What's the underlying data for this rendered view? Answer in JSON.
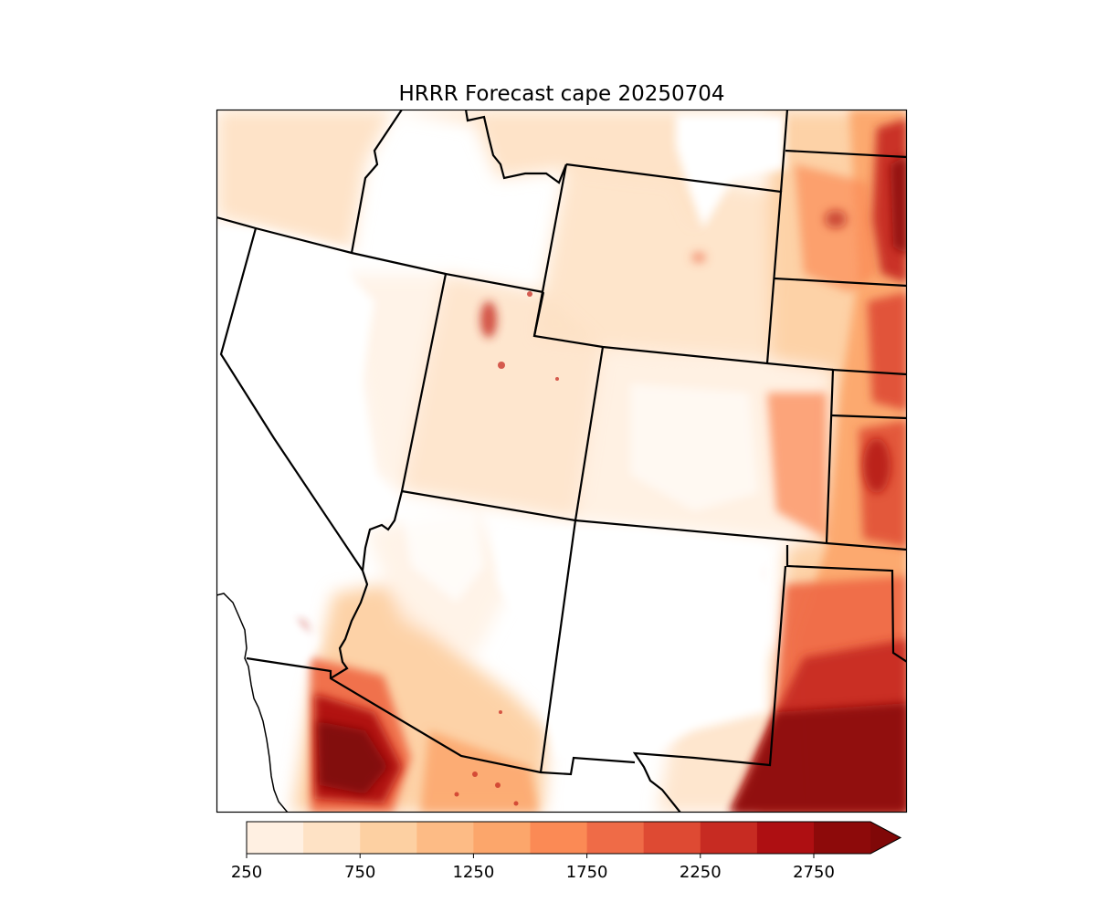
{
  "title": "HRRR Forecast cape 20250704",
  "colorbar": {
    "levels": [
      250,
      500,
      750,
      1000,
      1250,
      1500,
      1750,
      2000,
      2250,
      2500,
      2750,
      3000
    ],
    "colors": [
      "#fff0e2",
      "#fee2c5",
      "#fdd0a2",
      "#fdbb85",
      "#fca66b",
      "#fb8a55",
      "#ef6b47",
      "#de4a33",
      "#c72b22",
      "#ae0f12",
      "#8d0a0a"
    ],
    "over_color": "#800808",
    "extend": "max",
    "tick_labels": [
      "250",
      "750",
      "1250",
      "1750",
      "2250",
      "2750"
    ]
  }
}
